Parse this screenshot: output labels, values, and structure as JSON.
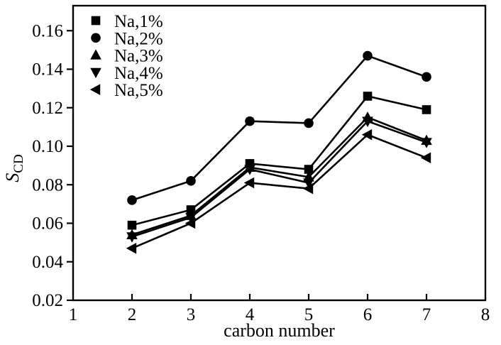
{
  "figure": {
    "background": "#ffffff",
    "foreground": "#000000"
  },
  "chart_data": {
    "type": "line",
    "title": "",
    "xlabel": "carbon number",
    "ylabel_base": "S",
    "ylabel_subscript": "CD",
    "x": [
      2,
      3,
      4,
      5,
      6,
      7
    ],
    "series": [
      {
        "name": "Na,1%",
        "marker": "square",
        "values": [
          0.059,
          0.067,
          0.091,
          0.088,
          0.126,
          0.119
        ]
      },
      {
        "name": "Na,2%",
        "marker": "circle",
        "values": [
          0.072,
          0.082,
          0.113,
          0.112,
          0.147,
          0.136
        ]
      },
      {
        "name": "Na,3%",
        "marker": "triangle-up",
        "values": [
          0.054,
          0.064,
          0.089,
          0.084,
          0.115,
          0.103
        ]
      },
      {
        "name": "Na,4%",
        "marker": "triangle-down",
        "values": [
          0.053,
          0.063,
          0.088,
          0.081,
          0.113,
          0.102
        ]
      },
      {
        "name": "Na,5%",
        "marker": "triangle-left",
        "values": [
          0.047,
          0.06,
          0.081,
          0.078,
          0.106,
          0.094
        ]
      }
    ],
    "xlim": [
      1,
      8
    ],
    "ylim": [
      0.02,
      0.173
    ],
    "xticks": [
      1,
      2,
      3,
      4,
      5,
      6,
      7,
      8
    ],
    "yticks": [
      0.02,
      0.04,
      0.06,
      0.08,
      0.1,
      0.12,
      0.14,
      0.16
    ],
    "ytick_decimals": 2,
    "grid": false,
    "legend_position": "top-left",
    "line_color": "#000000",
    "marker_color": "#000000"
  }
}
